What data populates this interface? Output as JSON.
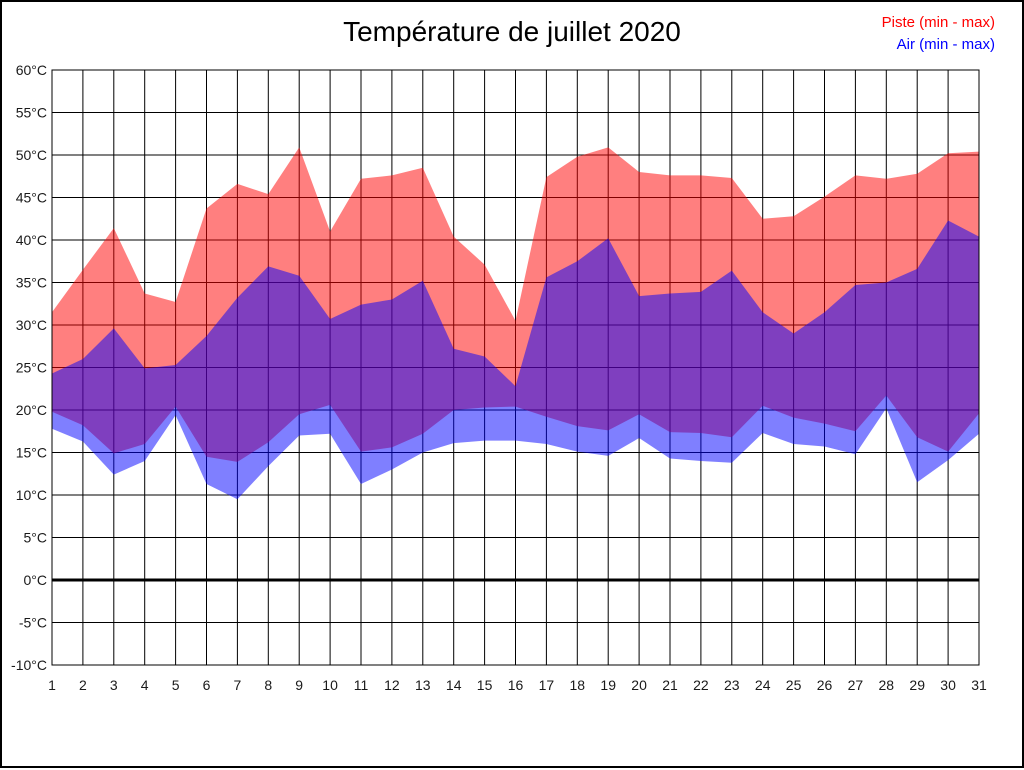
{
  "title": "Température de juillet 2020",
  "legend": {
    "piste": {
      "label": "Piste (min - max)",
      "color": "#ff0000"
    },
    "air": {
      "label": "Air (min - max)",
      "color": "#0000ff"
    }
  },
  "chart_data": {
    "type": "area",
    "title": "Température de juillet 2020",
    "x": [
      1,
      2,
      3,
      4,
      5,
      6,
      7,
      8,
      9,
      10,
      11,
      12,
      13,
      14,
      15,
      16,
      17,
      18,
      19,
      20,
      21,
      22,
      23,
      24,
      25,
      26,
      27,
      28,
      29,
      30,
      31
    ],
    "ylim": [
      -10,
      60
    ],
    "ytick_step": 5,
    "ytick_suffix": "°C",
    "grid": true,
    "zero_line_at": 0,
    "legend_position": "top-right",
    "series": [
      {
        "name": "Piste (min - max)",
        "fill": "rgba(255,0,0,0.5)",
        "max": [
          31.5,
          36.5,
          41.4,
          33.7,
          32.7,
          43.7,
          46.6,
          45.4,
          50.9,
          41.0,
          47.2,
          47.6,
          48.5,
          40.4,
          37.1,
          30.5,
          47.4,
          49.8,
          50.9,
          48.0,
          47.6,
          47.6,
          47.3,
          42.5,
          42.8,
          45.1,
          47.6,
          47.2,
          47.8,
          50.2,
          50.4
        ],
        "min": [
          19.8,
          18.2,
          14.9,
          16.0,
          20.4,
          14.5,
          13.9,
          16.2,
          19.5,
          20.6,
          15.1,
          15.6,
          17.2,
          20.0,
          20.3,
          20.4,
          19.2,
          18.1,
          17.6,
          19.5,
          17.4,
          17.3,
          16.8,
          20.5,
          19.1,
          18.4,
          17.5,
          21.7,
          16.8,
          15.1,
          19.6
        ]
      },
      {
        "name": "Air (min - max)",
        "fill": "rgba(0,0,255,0.5)",
        "max": [
          24.3,
          26.0,
          29.6,
          24.9,
          25.3,
          28.7,
          33.2,
          36.9,
          35.8,
          30.7,
          32.4,
          33.0,
          35.2,
          27.2,
          26.3,
          22.8,
          35.6,
          37.5,
          40.2,
          33.4,
          33.7,
          33.9,
          36.4,
          31.5,
          29.0,
          31.5,
          34.7,
          35.0,
          36.6,
          42.3,
          40.4
        ],
        "min": [
          17.8,
          16.3,
          12.4,
          14.0,
          19.4,
          11.3,
          9.5,
          13.4,
          17.0,
          17.2,
          11.3,
          13.0,
          15.0,
          16.1,
          16.4,
          16.4,
          16.0,
          15.1,
          14.6,
          16.7,
          14.3,
          14.0,
          13.8,
          17.3,
          16.0,
          15.7,
          14.8,
          20.2,
          11.5,
          14.1,
          17.2
        ]
      }
    ]
  }
}
